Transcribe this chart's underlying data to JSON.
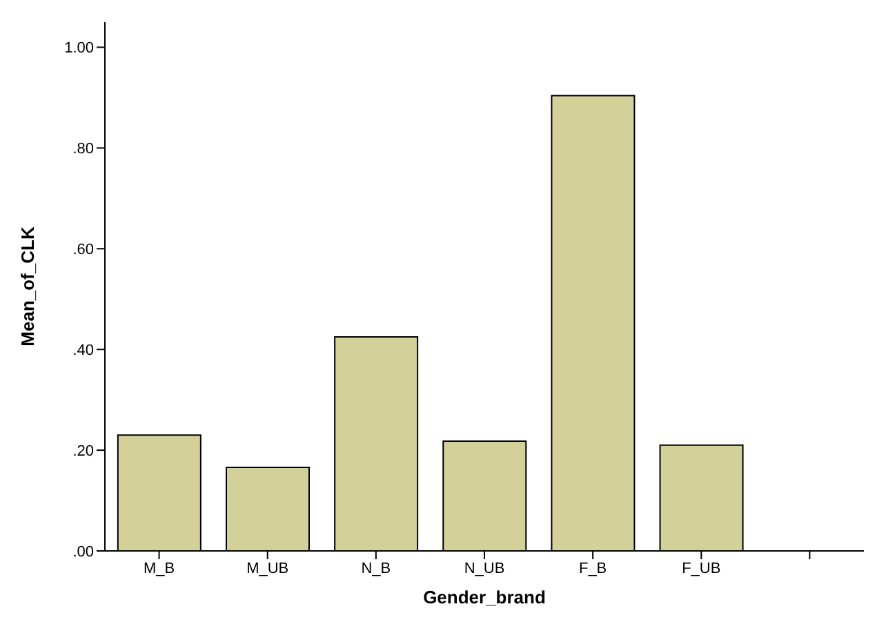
{
  "chart_data": {
    "type": "bar",
    "xlabel": "Gender_brand",
    "ylabel": "Mean_of_CLK",
    "categories": [
      "M_B",
      "M_UB",
      "N_B",
      "N_UB",
      "F_B",
      "F_UB",
      null
    ],
    "values": [
      0.23,
      0.166,
      0.425,
      0.218,
      0.904,
      0.21,
      null
    ],
    "color": "#d4d09a",
    "ylim": [
      0,
      1.05
    ],
    "yticks": [
      {
        "value": 0,
        "label": ".00"
      },
      {
        "value": 0.2,
        "label": ".20"
      },
      {
        "value": 0.4,
        "label": ".40"
      },
      {
        "value": 0.6,
        "label": ".60"
      },
      {
        "value": 0.8,
        "label": ".80"
      },
      {
        "value": 1,
        "label": "1.00"
      }
    ],
    "grid": false,
    "legend": false
  }
}
